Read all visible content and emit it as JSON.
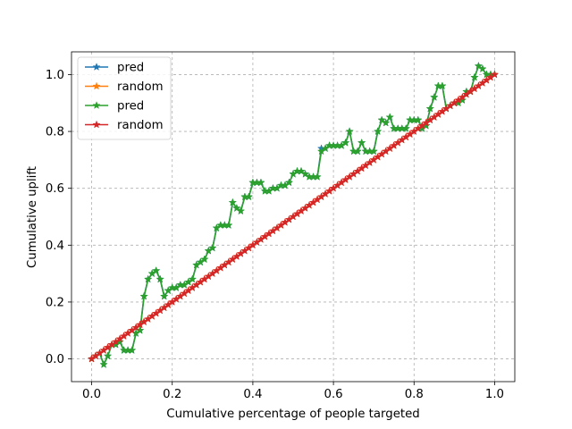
{
  "chart_data": {
    "type": "line",
    "title": "",
    "xlabel": "Cumulative percentage of people targeted",
    "ylabel": "Cumulative uplift",
    "xlim": [
      -0.05,
      1.05
    ],
    "ylim": [
      -0.08,
      1.08
    ],
    "xticks": [
      "0.0",
      "0.2",
      "0.4",
      "0.6",
      "0.8",
      "1.0"
    ],
    "yticks": [
      "0.0",
      "0.2",
      "0.4",
      "0.6",
      "0.8",
      "1.0"
    ],
    "grid": true,
    "legend_position": "top-left",
    "series": [
      {
        "name": "pred",
        "color": "#1f77b4",
        "x": [
          0.0,
          0.01,
          0.02,
          0.03,
          0.04,
          0.05,
          0.06,
          0.07,
          0.08,
          0.09,
          0.1,
          0.11,
          0.12,
          0.13,
          0.14,
          0.15,
          0.16,
          0.17,
          0.18,
          0.19,
          0.2,
          0.21,
          0.22,
          0.23,
          0.24,
          0.25,
          0.26,
          0.27,
          0.28,
          0.29,
          0.3,
          0.31,
          0.32,
          0.33,
          0.34,
          0.35,
          0.36,
          0.37,
          0.38,
          0.39,
          0.4,
          0.41,
          0.42,
          0.43,
          0.44,
          0.45,
          0.46,
          0.47,
          0.48,
          0.49,
          0.5,
          0.51,
          0.52,
          0.53,
          0.54,
          0.55,
          0.56,
          0.57,
          0.58,
          0.59,
          0.6,
          0.61,
          0.62,
          0.63,
          0.64,
          0.65,
          0.66,
          0.67,
          0.68,
          0.69,
          0.7,
          0.71,
          0.72,
          0.73,
          0.74,
          0.75,
          0.76,
          0.77,
          0.78,
          0.79,
          0.8,
          0.81,
          0.82,
          0.83,
          0.84,
          0.85,
          0.86,
          0.87,
          0.88,
          0.89,
          0.9,
          0.91,
          0.92,
          0.93,
          0.94,
          0.95,
          0.96,
          0.97,
          0.98,
          0.99,
          1.0
        ],
        "y": [
          0.0,
          0.01,
          0.02,
          -0.02,
          0.01,
          0.05,
          0.05,
          0.06,
          0.03,
          0.03,
          0.03,
          0.09,
          0.1,
          0.22,
          0.28,
          0.3,
          0.31,
          0.28,
          0.22,
          0.24,
          0.25,
          0.25,
          0.26,
          0.26,
          0.27,
          0.28,
          0.33,
          0.34,
          0.35,
          0.38,
          0.39,
          0.46,
          0.47,
          0.47,
          0.47,
          0.55,
          0.53,
          0.52,
          0.57,
          0.57,
          0.62,
          0.62,
          0.62,
          0.59,
          0.59,
          0.6,
          0.6,
          0.61,
          0.61,
          0.62,
          0.65,
          0.66,
          0.66,
          0.65,
          0.64,
          0.64,
          0.64,
          0.74,
          0.74,
          0.75,
          0.75,
          0.75,
          0.75,
          0.76,
          0.8,
          0.73,
          0.73,
          0.76,
          0.73,
          0.73,
          0.73,
          0.8,
          0.84,
          0.83,
          0.85,
          0.81,
          0.81,
          0.81,
          0.81,
          0.84,
          0.84,
          0.84,
          0.81,
          0.82,
          0.88,
          0.92,
          0.96,
          0.96,
          0.88,
          0.89,
          0.9,
          0.9,
          0.91,
          0.94,
          0.94,
          0.99,
          1.03,
          1.02,
          1.0,
          1.0,
          1.0
        ]
      },
      {
        "name": "random",
        "color": "#ff7f0e",
        "x": [
          0.0,
          0.01,
          0.02,
          0.03,
          0.04,
          0.05,
          0.06,
          0.07,
          0.08,
          0.09,
          0.1,
          0.11,
          0.12,
          0.13,
          0.14,
          0.15,
          0.16,
          0.17,
          0.18,
          0.19,
          0.2,
          0.21,
          0.22,
          0.23,
          0.24,
          0.25,
          0.26,
          0.27,
          0.28,
          0.29,
          0.3,
          0.31,
          0.32,
          0.33,
          0.34,
          0.35,
          0.36,
          0.37,
          0.38,
          0.39,
          0.4,
          0.41,
          0.42,
          0.43,
          0.44,
          0.45,
          0.46,
          0.47,
          0.48,
          0.49,
          0.5,
          0.51,
          0.52,
          0.53,
          0.54,
          0.55,
          0.56,
          0.57,
          0.58,
          0.59,
          0.6,
          0.61,
          0.62,
          0.63,
          0.64,
          0.65,
          0.66,
          0.67,
          0.68,
          0.69,
          0.7,
          0.71,
          0.72,
          0.73,
          0.74,
          0.75,
          0.76,
          0.77,
          0.78,
          0.79,
          0.8,
          0.81,
          0.82,
          0.83,
          0.84,
          0.85,
          0.86,
          0.87,
          0.88,
          0.89,
          0.9,
          0.91,
          0.92,
          0.93,
          0.94,
          0.95,
          0.96,
          0.97,
          0.98,
          0.99,
          1.0
        ],
        "y": [
          0.0,
          0.01,
          0.02,
          0.03,
          0.04,
          0.05,
          0.06,
          0.07,
          0.08,
          0.09,
          0.1,
          0.11,
          0.12,
          0.13,
          0.14,
          0.15,
          0.16,
          0.17,
          0.18,
          0.19,
          0.2,
          0.21,
          0.22,
          0.23,
          0.24,
          0.25,
          0.26,
          0.27,
          0.28,
          0.29,
          0.3,
          0.31,
          0.32,
          0.33,
          0.34,
          0.35,
          0.36,
          0.37,
          0.38,
          0.39,
          0.4,
          0.41,
          0.42,
          0.43,
          0.44,
          0.45,
          0.46,
          0.47,
          0.48,
          0.49,
          0.5,
          0.51,
          0.52,
          0.53,
          0.54,
          0.55,
          0.56,
          0.57,
          0.58,
          0.59,
          0.6,
          0.61,
          0.62,
          0.63,
          0.64,
          0.65,
          0.66,
          0.67,
          0.68,
          0.69,
          0.7,
          0.71,
          0.72,
          0.73,
          0.74,
          0.75,
          0.76,
          0.77,
          0.78,
          0.79,
          0.8,
          0.81,
          0.82,
          0.83,
          0.84,
          0.85,
          0.86,
          0.87,
          0.88,
          0.89,
          0.9,
          0.91,
          0.92,
          0.93,
          0.94,
          0.95,
          0.96,
          0.97,
          0.98,
          0.99,
          1.0
        ]
      },
      {
        "name": "pred",
        "color": "#2ca02c",
        "x": [
          0.0,
          0.01,
          0.02,
          0.03,
          0.04,
          0.05,
          0.06,
          0.07,
          0.08,
          0.09,
          0.1,
          0.11,
          0.12,
          0.13,
          0.14,
          0.15,
          0.16,
          0.17,
          0.18,
          0.19,
          0.2,
          0.21,
          0.22,
          0.23,
          0.24,
          0.25,
          0.26,
          0.27,
          0.28,
          0.29,
          0.3,
          0.31,
          0.32,
          0.33,
          0.34,
          0.35,
          0.36,
          0.37,
          0.38,
          0.39,
          0.4,
          0.41,
          0.42,
          0.43,
          0.44,
          0.45,
          0.46,
          0.47,
          0.48,
          0.49,
          0.5,
          0.51,
          0.52,
          0.53,
          0.54,
          0.55,
          0.56,
          0.57,
          0.58,
          0.59,
          0.6,
          0.61,
          0.62,
          0.63,
          0.64,
          0.65,
          0.66,
          0.67,
          0.68,
          0.69,
          0.7,
          0.71,
          0.72,
          0.73,
          0.74,
          0.75,
          0.76,
          0.77,
          0.78,
          0.79,
          0.8,
          0.81,
          0.82,
          0.83,
          0.84,
          0.85,
          0.86,
          0.87,
          0.88,
          0.89,
          0.9,
          0.91,
          0.92,
          0.93,
          0.94,
          0.95,
          0.96,
          0.97,
          0.98,
          0.99,
          1.0
        ],
        "y": [
          0.0,
          0.01,
          0.02,
          -0.02,
          0.01,
          0.05,
          0.05,
          0.06,
          0.03,
          0.03,
          0.03,
          0.09,
          0.1,
          0.22,
          0.28,
          0.3,
          0.31,
          0.28,
          0.22,
          0.24,
          0.25,
          0.25,
          0.26,
          0.26,
          0.27,
          0.28,
          0.33,
          0.34,
          0.35,
          0.38,
          0.39,
          0.46,
          0.47,
          0.47,
          0.47,
          0.55,
          0.53,
          0.52,
          0.57,
          0.57,
          0.62,
          0.62,
          0.62,
          0.59,
          0.59,
          0.6,
          0.6,
          0.61,
          0.61,
          0.62,
          0.65,
          0.66,
          0.66,
          0.65,
          0.64,
          0.64,
          0.64,
          0.73,
          0.74,
          0.75,
          0.75,
          0.75,
          0.75,
          0.76,
          0.8,
          0.73,
          0.73,
          0.76,
          0.73,
          0.73,
          0.73,
          0.8,
          0.84,
          0.83,
          0.85,
          0.81,
          0.81,
          0.81,
          0.81,
          0.84,
          0.84,
          0.84,
          0.81,
          0.82,
          0.88,
          0.92,
          0.96,
          0.96,
          0.88,
          0.89,
          0.9,
          0.9,
          0.91,
          0.94,
          0.94,
          0.99,
          1.03,
          1.02,
          1.0,
          1.0,
          1.0
        ]
      },
      {
        "name": "random",
        "color": "#d62728",
        "x": [
          0.0,
          0.01,
          0.02,
          0.03,
          0.04,
          0.05,
          0.06,
          0.07,
          0.08,
          0.09,
          0.1,
          0.11,
          0.12,
          0.13,
          0.14,
          0.15,
          0.16,
          0.17,
          0.18,
          0.19,
          0.2,
          0.21,
          0.22,
          0.23,
          0.24,
          0.25,
          0.26,
          0.27,
          0.28,
          0.29,
          0.3,
          0.31,
          0.32,
          0.33,
          0.34,
          0.35,
          0.36,
          0.37,
          0.38,
          0.39,
          0.4,
          0.41,
          0.42,
          0.43,
          0.44,
          0.45,
          0.46,
          0.47,
          0.48,
          0.49,
          0.5,
          0.51,
          0.52,
          0.53,
          0.54,
          0.55,
          0.56,
          0.57,
          0.58,
          0.59,
          0.6,
          0.61,
          0.62,
          0.63,
          0.64,
          0.65,
          0.66,
          0.67,
          0.68,
          0.69,
          0.7,
          0.71,
          0.72,
          0.73,
          0.74,
          0.75,
          0.76,
          0.77,
          0.78,
          0.79,
          0.8,
          0.81,
          0.82,
          0.83,
          0.84,
          0.85,
          0.86,
          0.87,
          0.88,
          0.89,
          0.9,
          0.91,
          0.92,
          0.93,
          0.94,
          0.95,
          0.96,
          0.97,
          0.98,
          0.99,
          1.0
        ],
        "y": [
          0.0,
          0.01,
          0.02,
          0.03,
          0.04,
          0.05,
          0.06,
          0.07,
          0.08,
          0.09,
          0.1,
          0.11,
          0.12,
          0.13,
          0.14,
          0.15,
          0.16,
          0.17,
          0.18,
          0.19,
          0.2,
          0.21,
          0.22,
          0.23,
          0.24,
          0.25,
          0.26,
          0.27,
          0.28,
          0.29,
          0.3,
          0.31,
          0.32,
          0.33,
          0.34,
          0.35,
          0.36,
          0.37,
          0.38,
          0.39,
          0.4,
          0.41,
          0.42,
          0.43,
          0.44,
          0.45,
          0.46,
          0.47,
          0.48,
          0.49,
          0.5,
          0.51,
          0.52,
          0.53,
          0.54,
          0.55,
          0.56,
          0.57,
          0.58,
          0.59,
          0.6,
          0.61,
          0.62,
          0.63,
          0.64,
          0.65,
          0.66,
          0.67,
          0.68,
          0.69,
          0.7,
          0.71,
          0.72,
          0.73,
          0.74,
          0.75,
          0.76,
          0.77,
          0.78,
          0.79,
          0.8,
          0.81,
          0.82,
          0.83,
          0.84,
          0.85,
          0.86,
          0.87,
          0.88,
          0.89,
          0.9,
          0.91,
          0.92,
          0.93,
          0.94,
          0.95,
          0.96,
          0.97,
          0.98,
          0.99,
          1.0
        ]
      }
    ]
  }
}
